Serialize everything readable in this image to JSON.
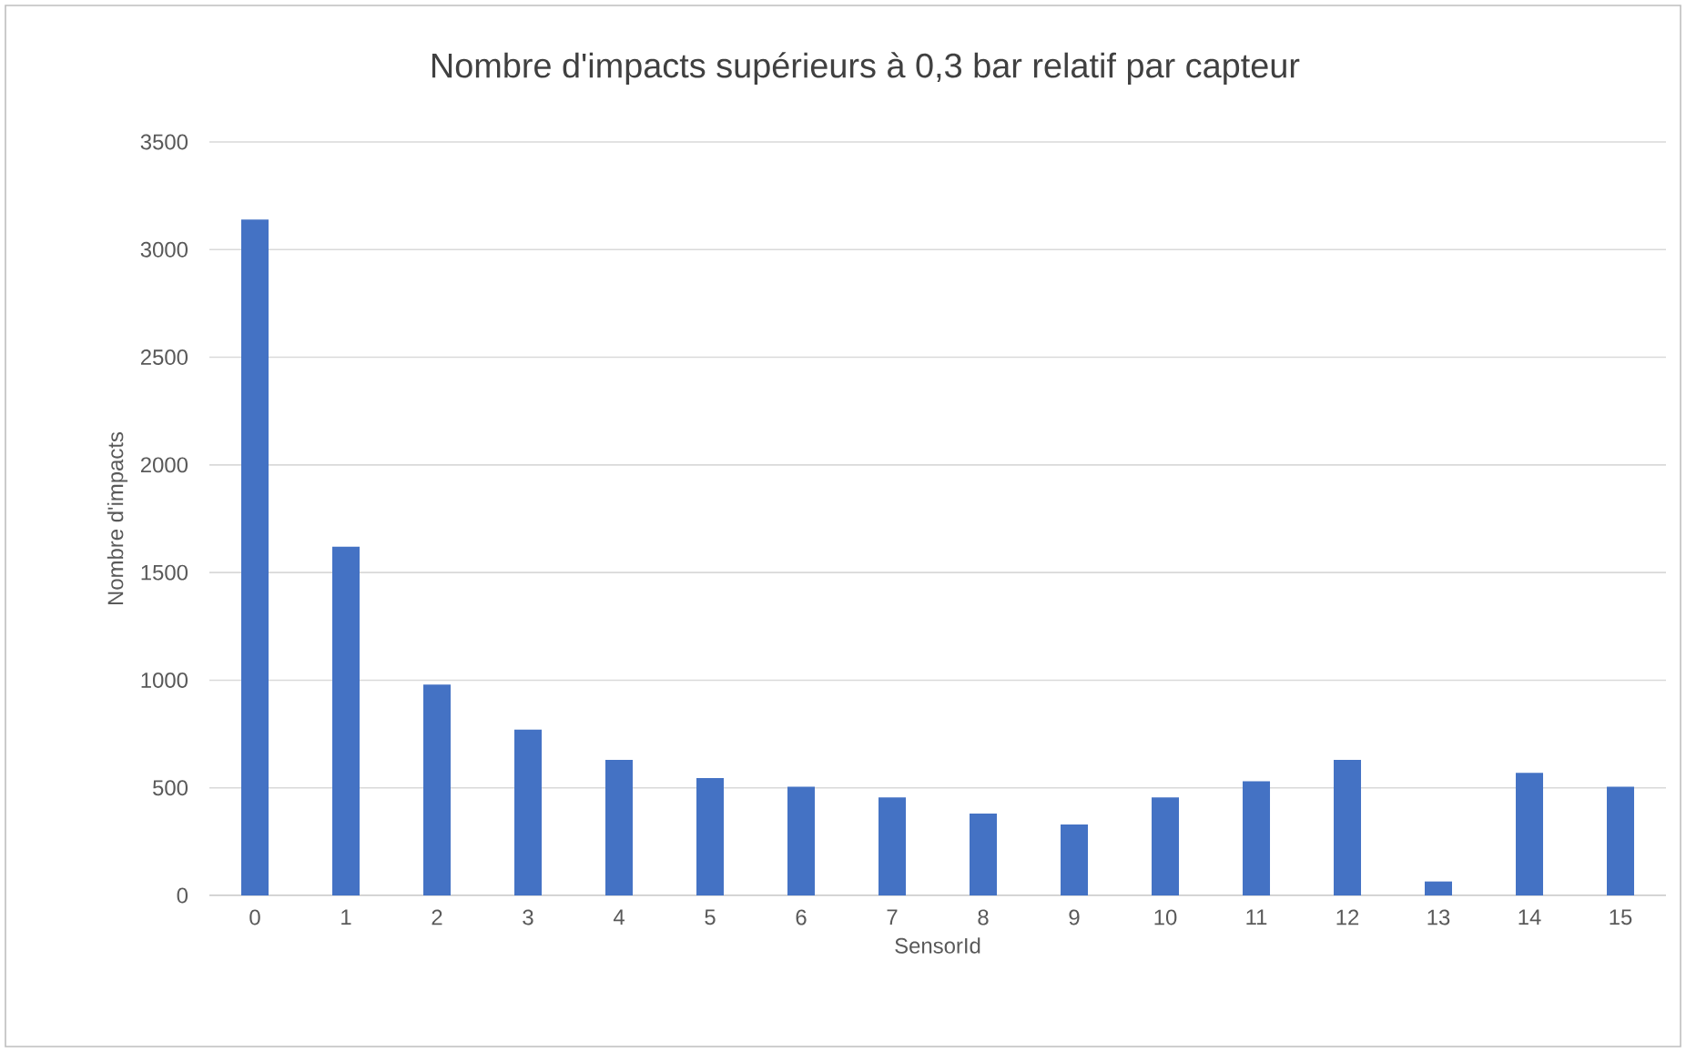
{
  "chart_data": {
    "type": "bar",
    "title": "Nombre d'impacts supérieurs à 0,3 bar relatif par capteur",
    "xlabel": "SensorId",
    "ylabel": "Nombre d'impacts",
    "categories": [
      "0",
      "1",
      "2",
      "3",
      "4",
      "5",
      "6",
      "7",
      "8",
      "9",
      "10",
      "11",
      "12",
      "13",
      "14",
      "15"
    ],
    "values": [
      3140,
      1620,
      980,
      770,
      630,
      545,
      505,
      455,
      380,
      330,
      455,
      530,
      630,
      65,
      570,
      505
    ],
    "color": "#4472c4",
    "ylim": [
      0,
      3500
    ],
    "yticks": [
      0,
      500,
      1000,
      1500,
      2000,
      2500,
      3000,
      3500
    ],
    "grid": "y"
  }
}
